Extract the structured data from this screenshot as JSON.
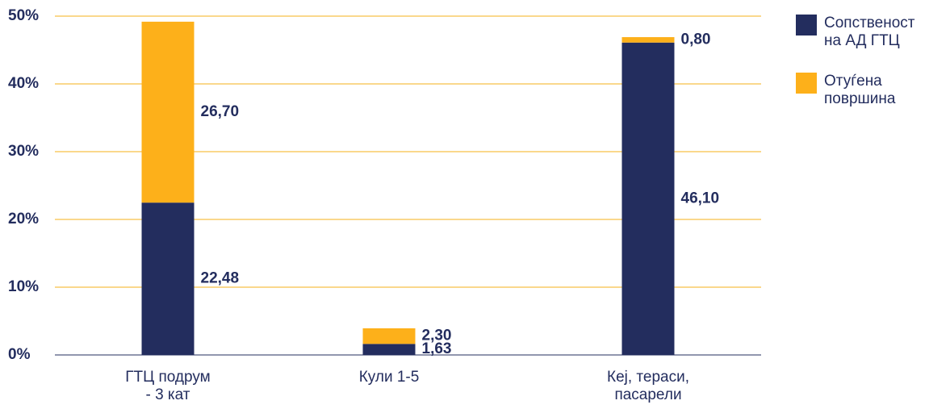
{
  "chart_data": {
    "type": "stacked_bar",
    "categories": [
      "ГТЦ подрум\n- 3 кат",
      "Кули 1-5",
      "Кеј, тераси,\nпасарели"
    ],
    "series": [
      {
        "name": "Сопственост\nна  АД ГТЦ",
        "color": "#232d5e",
        "values": [
          22.48,
          1.63,
          46.1
        ],
        "value_labels": [
          "22,48",
          "1,63",
          "46,10"
        ]
      },
      {
        "name": "Отуѓена\nповршина",
        "color": "#fdb01a",
        "values": [
          26.7,
          2.3,
          0.8
        ],
        "value_labels": [
          "26,70",
          "2,30",
          "0,80"
        ]
      }
    ],
    "ylim": [
      0,
      50
    ],
    "yticks": [
      {
        "value": 0,
        "label": "0%"
      },
      {
        "value": 10,
        "label": "10%"
      },
      {
        "value": 20,
        "label": "20%"
      },
      {
        "value": 30,
        "label": "30%"
      },
      {
        "value": 40,
        "label": "40%"
      },
      {
        "value": 50,
        "label": "50%"
      }
    ],
    "grid": true,
    "grid_color": "#f5b21a",
    "legend": "right"
  }
}
